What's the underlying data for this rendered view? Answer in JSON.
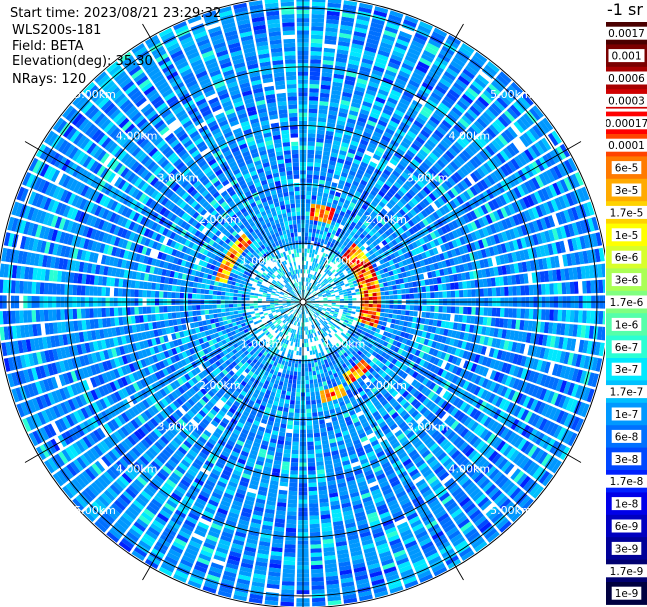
{
  "header": {
    "start_time": "Start time: 2023/08/21 23:29:32",
    "instrument": "WLS200s-181",
    "field": "Field: BETA",
    "elevation": "Elevation(deg): 35.30",
    "nrays": "NRays: 120"
  },
  "colorbar": {
    "units_label": "-1 sr",
    "tick_labels": [
      "0.0017",
      "0.001",
      "0.0006",
      "0.0003",
      "0.00017",
      "0.0001",
      "6e-5",
      "3e-5",
      "1.7e-5",
      "1e-5",
      "6e-6",
      "3e-6",
      "1.7e-6",
      "1e-6",
      "6e-7",
      "3e-7",
      "1.7e-7",
      "1e-7",
      "6e-8",
      "3e-8",
      "1.7e-8",
      "1e-8",
      "6e-9",
      "3e-9",
      "1.7e-9",
      "1e-9"
    ],
    "colors": [
      "#4a0000",
      "#7a0000",
      "#a80000",
      "#d00000",
      "#ff0000",
      "#ff4400",
      "#ff7a00",
      "#ffaa00",
      "#ffd200",
      "#ffff00",
      "#d8ff2a",
      "#aaff55",
      "#80ff80",
      "#55ffaa",
      "#2affd4",
      "#00e8ff",
      "#00c0ff",
      "#0098ff",
      "#0070ff",
      "#0048ff",
      "#0020ff",
      "#0000e8",
      "#0000c0",
      "#000098",
      "#000070",
      "#000040"
    ]
  },
  "chart_data": {
    "type": "heatmap",
    "projection": "ppi-polar",
    "field": "BETA",
    "elevation_deg": 35.3,
    "n_rays": 120,
    "range_rings_km": [
      1,
      2,
      3,
      4,
      5
    ],
    "ring_label_text": [
      "1.00km",
      "2.00km",
      "3.00km",
      "4.00km",
      "5.00km"
    ],
    "radial_line_spacing_deg": 30,
    "max_range_km": 5.2,
    "background_level_range": [
      "1e-8",
      "1.7e-7"
    ],
    "high_backscatter_features": [
      {
        "azimuth_deg": [
          -75,
          -40
        ],
        "range_km": [
          1.3,
          1.55
        ],
        "level_range": [
          "1e-5",
          "0.0017"
        ]
      },
      {
        "azimuth_deg": [
          5,
          20
        ],
        "range_km": [
          1.4,
          1.65
        ],
        "level_range": [
          "1e-5",
          "0.0006"
        ]
      },
      {
        "azimuth_deg": [
          40,
          110
        ],
        "range_km": [
          1.0,
          1.35
        ],
        "level_range": [
          "1e-5",
          "0.0006"
        ]
      },
      {
        "azimuth_deg": [
          155,
          170
        ],
        "range_km": [
          1.55,
          1.75
        ],
        "level_range": [
          "1e-5",
          "0.0003"
        ]
      },
      {
        "azimuth_deg": [
          135,
          150
        ],
        "range_km": [
          1.4,
          1.6
        ],
        "level_range": [
          "1e-5",
          "0.0003"
        ]
      }
    ]
  }
}
